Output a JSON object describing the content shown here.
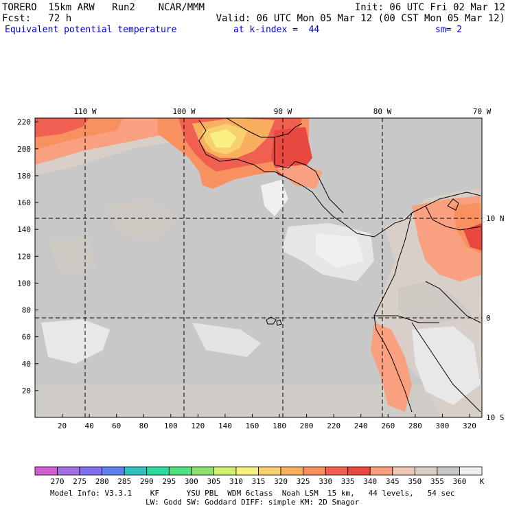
{
  "header": {
    "model": "TORERO  15km ARW   Run2    NCAR/MMM",
    "init": "Init: 06 UTC Fri 02 Mar 12",
    "fcst": "Fcst:   72 h",
    "valid": "Valid: 06 UTC Mon 05 Mar 12 (00 CST Mon 05 Mar 12)",
    "field": "Equivalent potential temperature",
    "level": "at k-index =  44",
    "smooth": "sm= 2"
  },
  "map": {
    "lon_labels": [
      "110 W",
      "100 W",
      "90 W",
      "80 W",
      "70 W"
    ],
    "lat_labels": [
      "10 N",
      "0",
      "10 S"
    ],
    "x_ticks": [
      "20",
      "40",
      "60",
      "80",
      "100",
      "120",
      "140",
      "160",
      "180",
      "200",
      "220",
      "240",
      "260",
      "280",
      "300",
      "320"
    ],
    "y_ticks": [
      "20",
      "40",
      "60",
      "80",
      "100",
      "120",
      "140",
      "160",
      "180",
      "200",
      "220"
    ]
  },
  "colorbar": {
    "unit": "K",
    "labels": [
      "270",
      "275",
      "280",
      "285",
      "290",
      "295",
      "300",
      "305",
      "310",
      "315",
      "320",
      "325",
      "330",
      "335",
      "340",
      "345",
      "350",
      "355",
      "360"
    ],
    "colors": [
      "#d060d0",
      "#a070e0",
      "#8070f0",
      "#6080f0",
      "#30c0c0",
      "#30d8a0",
      "#50e080",
      "#90e070",
      "#d0f070",
      "#f8f080",
      "#f8d070",
      "#f8b060",
      "#f89060",
      "#f06050",
      "#e84840",
      "#f8a080",
      "#f0c8b8",
      "#d8d0c8",
      "#c8c8c8",
      "#f0f0f0"
    ]
  },
  "footer": {
    "line1": "Model Info: V3.3.1    KF      YSU PBL  WDM 6class  Noah LSM  15 km,   44 levels,   54 sec",
    "line2": "LW: Godd SW: Goddard DIFF: simple KM: 2D Smagor"
  }
}
